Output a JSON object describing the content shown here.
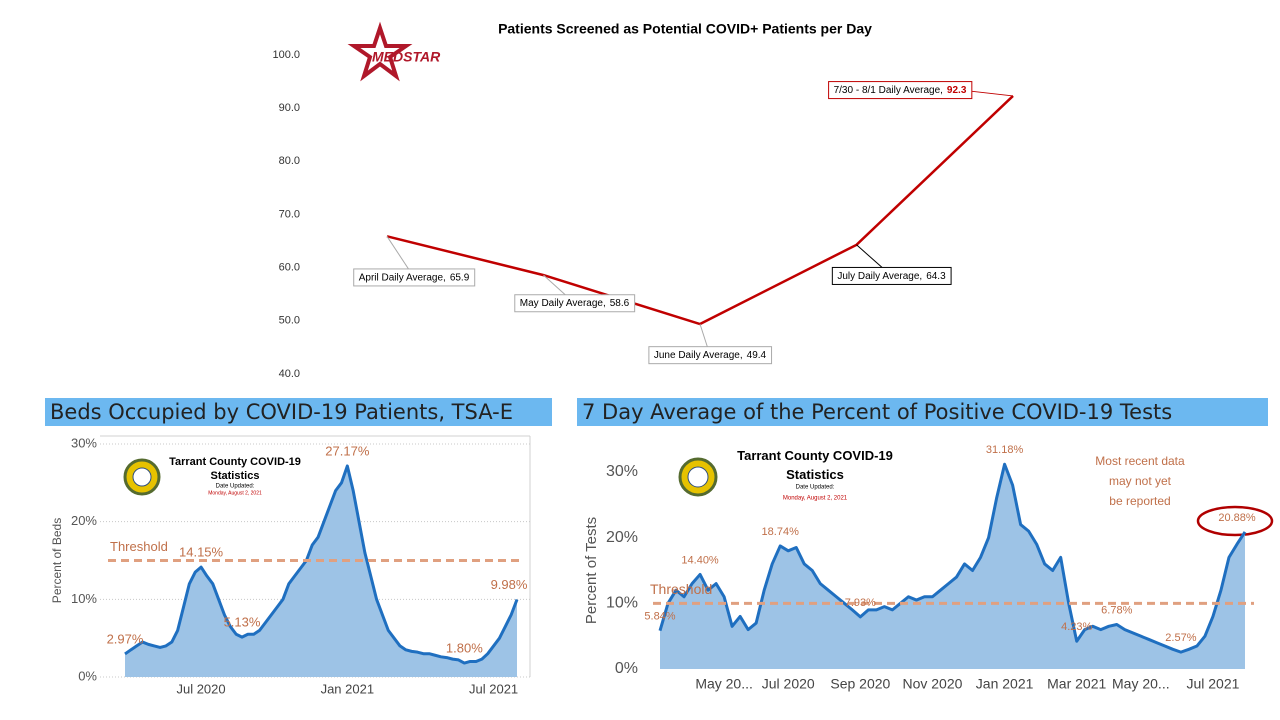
{
  "logo": "MEDSTAR",
  "seal": {
    "name": "Tarrant County COVID-19 Statistics",
    "updated": "Date Updated:",
    "date": "Monday, August 2, 2021"
  },
  "chart_data": [
    {
      "type": "line",
      "title": "Patients Screened as Potential COVID+ Patients per Day",
      "categories": [
        "April Daily Average,",
        "May Daily Average,",
        "June Daily Average,",
        "July Daily Average,",
        "7/30 - 8/1 Daily Average,"
      ],
      "values": [
        65.9,
        58.6,
        49.4,
        64.3,
        92.3
      ],
      "color": "#c00000",
      "ylim": [
        40,
        100
      ],
      "yticks": [
        {
          "value": 40,
          "label": "40.0"
        },
        {
          "value": 50,
          "label": "50.0"
        },
        {
          "value": 60,
          "label": "60.0"
        },
        {
          "value": 70,
          "label": "70.0"
        },
        {
          "value": 80,
          "label": "80.0"
        },
        {
          "value": 90,
          "label": "90.0"
        },
        {
          "value": 100,
          "label": "100.0"
        }
      ],
      "grid": false
    },
    {
      "type": "area",
      "title": "Beds Occupied by COVID-19 Patients, TSA-E",
      "y_label": "Percent of Beds",
      "categories": [
        null,
        null,
        null,
        null,
        null,
        null,
        null,
        null,
        null,
        null,
        null,
        null,
        null,
        "Jul 2020",
        null,
        null,
        null,
        null,
        null,
        null,
        null,
        null,
        null,
        null,
        null,
        null,
        null,
        null,
        null,
        null,
        null,
        null,
        null,
        null,
        null,
        null,
        null,
        null,
        "Jan 2021",
        null,
        null,
        null,
        null,
        null,
        null,
        null,
        null,
        null,
        null,
        null,
        null,
        null,
        null,
        null,
        null,
        null,
        null,
        null,
        null,
        null,
        null,
        null,
        null,
        "Jul 2021",
        null,
        null,
        null,
        null
      ],
      "values": [
        2.97,
        3.5,
        4,
        4.5,
        4.2,
        4,
        3.8,
        4,
        4.5,
        6,
        9,
        12,
        13.5,
        14.15,
        13,
        12,
        10,
        8,
        6.5,
        5.5,
        5.13,
        5.5,
        5.5,
        6,
        7,
        8,
        9,
        10,
        12,
        13,
        14,
        15,
        17,
        18,
        20,
        22,
        24,
        25,
        27.17,
        24,
        20,
        16,
        13,
        10,
        8,
        6,
        5,
        4,
        3.5,
        3.3,
        3.2,
        3,
        3,
        2.8,
        2.6,
        2.5,
        2.3,
        2.2,
        1.8,
        2,
        2,
        2.3,
        3,
        4,
        5,
        6.5,
        8,
        9.98
      ],
      "value_labels": [
        "2.97%",
        null,
        null,
        null,
        null,
        null,
        null,
        null,
        null,
        null,
        null,
        null,
        null,
        "14.15%",
        null,
        null,
        null,
        null,
        null,
        null,
        "5.13%",
        null,
        null,
        null,
        null,
        null,
        null,
        null,
        null,
        null,
        null,
        null,
        null,
        null,
        null,
        null,
        null,
        null,
        "27.17%",
        null,
        null,
        null,
        null,
        null,
        null,
        null,
        null,
        null,
        null,
        null,
        null,
        null,
        null,
        null,
        null,
        null,
        null,
        null,
        "1.80%",
        null,
        null,
        null,
        null,
        null,
        null,
        null,
        null,
        "9.98%"
      ],
      "color": "#1f6fc0",
      "fill": "#9dc3e6",
      "threshold": {
        "value": 15,
        "label": "Threshold"
      },
      "ylim": [
        0,
        30
      ],
      "yticks": [
        {
          "value": 0,
          "label": "0%"
        },
        {
          "value": 10,
          "label": "10%"
        },
        {
          "value": 20,
          "label": "20%"
        },
        {
          "value": 30,
          "label": "30%"
        }
      ],
      "grid": true
    },
    {
      "type": "area",
      "title": "7 Day Average of the Percent of Positive COVID-19 Tests",
      "y_label": "Percent of Tests",
      "note": "Most recent data may not yet be reported",
      "categories": [
        null,
        null,
        null,
        null,
        null,
        null,
        null,
        null,
        "May 20...",
        null,
        null,
        null,
        null,
        null,
        null,
        null,
        "Jul 2020",
        null,
        null,
        null,
        null,
        null,
        null,
        null,
        null,
        "Sep 2020",
        null,
        null,
        null,
        null,
        null,
        null,
        null,
        null,
        "Nov 2020",
        null,
        null,
        null,
        null,
        null,
        null,
        null,
        null,
        "Jan 2021",
        null,
        null,
        null,
        null,
        null,
        null,
        null,
        null,
        "Mar 2021",
        null,
        null,
        null,
        null,
        null,
        null,
        null,
        "May 20...",
        null,
        null,
        null,
        null,
        null,
        null,
        null,
        null,
        "Jul 2021",
        null,
        null,
        null,
        null
      ],
      "values": [
        5.84,
        10,
        12,
        11,
        13,
        14.4,
        12,
        13,
        11,
        6.5,
        8,
        6,
        7,
        12,
        16,
        18.74,
        18,
        18.5,
        16,
        15,
        13,
        12,
        11,
        10,
        9,
        7.93,
        9,
        9,
        9.5,
        9,
        10,
        11,
        10.5,
        11,
        11,
        12,
        13,
        14,
        16,
        15,
        17,
        20,
        26,
        31.18,
        28,
        22,
        21,
        19,
        16,
        15,
        17,
        10,
        4.23,
        6,
        6.5,
        6,
        6.5,
        6.78,
        6,
        5.5,
        5,
        4.5,
        4,
        3.5,
        3,
        2.57,
        3,
        3.5,
        5,
        8,
        12,
        17,
        19,
        20.88
      ],
      "value_labels": [
        "5.84%",
        null,
        null,
        null,
        null,
        "14.40%",
        null,
        null,
        null,
        null,
        null,
        null,
        null,
        null,
        null,
        "18.74%",
        null,
        null,
        null,
        null,
        null,
        null,
        null,
        null,
        null,
        "7.93%",
        null,
        null,
        null,
        null,
        null,
        null,
        null,
        null,
        null,
        null,
        null,
        null,
        null,
        null,
        null,
        null,
        null,
        "31.18%",
        null,
        null,
        null,
        null,
        null,
        null,
        null,
        null,
        "4.23%",
        null,
        null,
        null,
        null,
        "6.78%",
        null,
        null,
        null,
        null,
        null,
        null,
        null,
        "2.57%",
        null,
        null,
        null,
        null,
        null,
        null,
        null,
        "20.88%"
      ],
      "color": "#1f6fc0",
      "fill": "#9dc3e6",
      "threshold": {
        "value": 10,
        "label": "Threshold"
      },
      "ylim": [
        0,
        30
      ],
      "yticks": [
        {
          "value": 0,
          "label": "0%"
        },
        {
          "value": 10,
          "label": "10%"
        },
        {
          "value": 20,
          "label": "20%"
        },
        {
          "value": 30,
          "label": "30%"
        }
      ],
      "grid": false
    }
  ]
}
